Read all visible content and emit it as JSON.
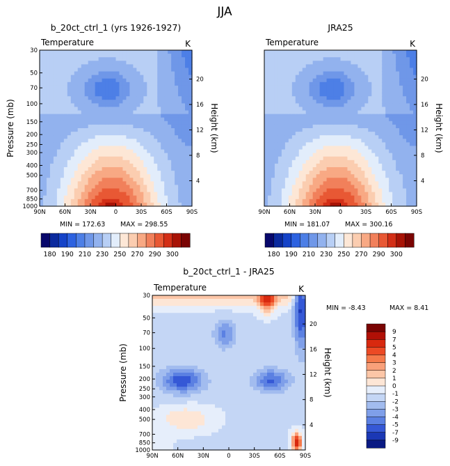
{
  "figure": {
    "title": "JJA"
  },
  "chart_data": [
    {
      "type": "heatmap",
      "id": "model",
      "title": "b_20ct_ctrl_1 (yrs 1926-1927)",
      "variable": "Temperature",
      "units": "K",
      "xlabel": "",
      "ylabel": "Pressure (mb)",
      "y2label": "Height (km)",
      "x_ticks": [
        "90N",
        "60N",
        "30N",
        "0",
        "30S",
        "60S",
        "90S"
      ],
      "y_ticks": [
        "30",
        "50",
        "70",
        "100",
        "150",
        "200",
        "250",
        "300",
        "400",
        "500",
        "700",
        "850",
        "1000"
      ],
      "y2_ticks": [
        "20",
        "16",
        "12",
        "8",
        "4"
      ],
      "min_label": "MIN = 172.63",
      "max_label": "MAX = 298.55",
      "min": 172.63,
      "max": 298.55,
      "colorbar_labels": [
        "180",
        "190",
        "210",
        "230",
        "250",
        "270",
        "290",
        "300"
      ]
    },
    {
      "type": "heatmap",
      "id": "reanalysis",
      "title": "JRA25",
      "variable": "Temperature",
      "units": "K",
      "xlabel": "",
      "ylabel": "",
      "y2label": "Height (km)",
      "x_ticks": [
        "90N",
        "60N",
        "30N",
        "0",
        "30S",
        "60S",
        "90S"
      ],
      "y_ticks": [],
      "y2_ticks": [
        "20",
        "16",
        "12",
        "8",
        "4"
      ],
      "min_label": "MIN = 181.07",
      "max_label": "MAX = 300.16",
      "min": 181.07,
      "max": 300.16,
      "colorbar_labels": [
        "180",
        "190",
        "210",
        "230",
        "250",
        "270",
        "290",
        "300"
      ]
    },
    {
      "type": "heatmap",
      "id": "difference",
      "title": "b_20ct_ctrl_1 - JRA25",
      "variable": "Temperature",
      "units": "K",
      "xlabel": "",
      "ylabel": "Pressure (mb)",
      "y2label": "Height (km)",
      "x_ticks": [
        "90N",
        "60N",
        "30N",
        "0",
        "30S",
        "60S",
        "90S"
      ],
      "y_ticks": [
        "30",
        "50",
        "70",
        "100",
        "150",
        "200",
        "250",
        "300",
        "400",
        "500",
        "700",
        "850",
        "1000"
      ],
      "y2_ticks": [
        "20",
        "16",
        "12",
        "8",
        "4"
      ],
      "min_label": "MIN =  -8.43",
      "max_label": "MAX =   8.41",
      "min": -8.43,
      "max": 8.41,
      "colorbar_labels": [
        "9",
        "7",
        "5",
        "4",
        "3",
        "2",
        "1",
        "0",
        "-1",
        "-2",
        "-3",
        "-4",
        "-5",
        "-7",
        "-9"
      ]
    }
  ],
  "colors": {
    "temperature_scale": [
      "#08086b",
      "#0b2a9e",
      "#1543c8",
      "#2d62e0",
      "#4d7fe6",
      "#6f97e8",
      "#92b2ee",
      "#b8cff5",
      "#e2edfb",
      "#fde7d6",
      "#fbcdb0",
      "#f8a984",
      "#f1805b",
      "#e85834",
      "#d32f17",
      "#a81306",
      "#7a0403"
    ],
    "difference_scale": [
      "#7a0403",
      "#b11006",
      "#d8290f",
      "#ec4a25",
      "#f57a4b",
      "#f9a07a",
      "#fcc6a7",
      "#fde6d6",
      "#e6eefb",
      "#c4d6f5",
      "#a2bcef",
      "#7f9fe9",
      "#5b80e2",
      "#3558d6",
      "#1b38b5",
      "#0a1a83"
    ]
  }
}
